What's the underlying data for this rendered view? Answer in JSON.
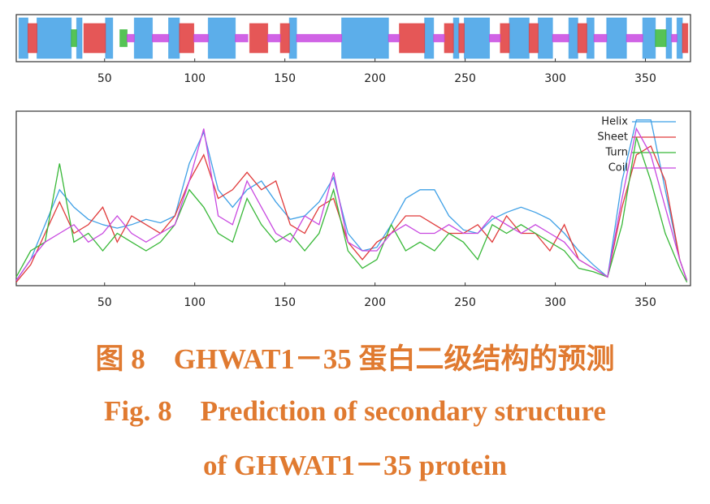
{
  "chart_data": [
    {
      "type": "track",
      "xlim": [
        1,
        375
      ],
      "xticks": [
        50,
        100,
        150,
        200,
        250,
        300,
        350
      ],
      "series": [
        {
          "color": "#3fa0e6",
          "segments": [
            [
              3,
              7
            ],
            [
              13,
              31
            ],
            [
              35,
              37
            ],
            [
              51,
              54
            ],
            [
              67,
              76
            ],
            [
              86,
              91
            ],
            [
              108,
              122
            ],
            [
              153,
              156
            ],
            [
              182,
              207
            ],
            [
              228,
              232
            ],
            [
              244,
              246
            ],
            [
              250,
              263
            ],
            [
              275,
              285
            ],
            [
              291,
              298
            ],
            [
              308,
              312
            ],
            [
              318,
              321
            ],
            [
              329,
              339
            ],
            [
              349,
              355
            ],
            [
              362,
              364
            ],
            [
              368,
              370
            ]
          ]
        },
        {
          "color": "#e03a3a",
          "segments": [
            [
              8,
              12
            ],
            [
              39,
              50
            ],
            [
              92,
              99
            ],
            [
              131,
              140
            ],
            [
              148,
              152
            ],
            [
              214,
              227
            ],
            [
              239,
              243
            ],
            [
              247,
              249
            ],
            [
              270,
              274
            ],
            [
              286,
              290
            ],
            [
              313,
              317
            ],
            [
              371,
              373
            ]
          ]
        },
        {
          "color": "#38b838",
          "segments": [
            [
              32,
              34
            ],
            [
              59,
              62
            ],
            [
              356,
              361
            ]
          ]
        },
        {
          "color": "#c848e0",
          "segments": [
            [
              63,
              66
            ],
            [
              77,
              85
            ],
            [
              100,
              107
            ],
            [
              123,
              129
            ],
            [
              141,
              147
            ],
            [
              157,
              181
            ],
            [
              208,
              213
            ],
            [
              233,
              238
            ],
            [
              264,
              269
            ],
            [
              299,
              307
            ],
            [
              322,
              328
            ],
            [
              340,
              348
            ],
            [
              365,
              367
            ]
          ]
        }
      ]
    },
    {
      "type": "line",
      "xlim": [
        1,
        375
      ],
      "ylim": [
        0,
        1
      ],
      "xticks": [
        50,
        100,
        150,
        200,
        250,
        300,
        350
      ],
      "x": [
        1,
        9,
        17,
        25,
        33,
        41,
        49,
        57,
        65,
        73,
        81,
        89,
        97,
        105,
        113,
        121,
        129,
        137,
        145,
        153,
        161,
        169,
        177,
        185,
        193,
        201,
        209,
        217,
        225,
        233,
        241,
        249,
        257,
        265,
        273,
        281,
        289,
        297,
        305,
        313,
        321,
        329,
        337,
        345,
        353,
        361,
        369,
        373
      ],
      "series": [
        {
          "name": "Helix",
          "color": "#3fa0e6",
          "values": [
            0.03,
            0.15,
            0.35,
            0.55,
            0.45,
            0.38,
            0.35,
            0.33,
            0.35,
            0.38,
            0.36,
            0.4,
            0.7,
            0.88,
            0.55,
            0.45,
            0.55,
            0.6,
            0.48,
            0.38,
            0.4,
            0.48,
            0.62,
            0.3,
            0.2,
            0.22,
            0.35,
            0.5,
            0.55,
            0.55,
            0.4,
            0.32,
            0.3,
            0.38,
            0.42,
            0.45,
            0.42,
            0.38,
            0.3,
            0.2,
            0.12,
            0.05,
            0.6,
            0.95,
            0.95,
            0.55,
            0.15,
            0.03
          ]
        },
        {
          "name": "Sheet",
          "color": "#e03a3a",
          "values": [
            0.02,
            0.12,
            0.3,
            0.48,
            0.3,
            0.35,
            0.45,
            0.25,
            0.4,
            0.35,
            0.3,
            0.4,
            0.6,
            0.75,
            0.5,
            0.55,
            0.65,
            0.55,
            0.6,
            0.35,
            0.3,
            0.45,
            0.5,
            0.25,
            0.15,
            0.25,
            0.3,
            0.4,
            0.4,
            0.35,
            0.3,
            0.3,
            0.35,
            0.25,
            0.4,
            0.3,
            0.3,
            0.2,
            0.35,
            0.15,
            0.1,
            0.05,
            0.45,
            0.75,
            0.8,
            0.6,
            0.15,
            0.03
          ]
        },
        {
          "name": "Turn",
          "color": "#38b838",
          "values": [
            0.05,
            0.2,
            0.25,
            0.7,
            0.25,
            0.3,
            0.2,
            0.3,
            0.25,
            0.2,
            0.25,
            0.35,
            0.55,
            0.45,
            0.3,
            0.25,
            0.5,
            0.35,
            0.25,
            0.3,
            0.2,
            0.3,
            0.55,
            0.2,
            0.1,
            0.15,
            0.35,
            0.2,
            0.25,
            0.2,
            0.3,
            0.25,
            0.15,
            0.35,
            0.3,
            0.35,
            0.3,
            0.25,
            0.2,
            0.1,
            0.08,
            0.05,
            0.35,
            0.85,
            0.6,
            0.3,
            0.1,
            0.02
          ]
        },
        {
          "name": "Coil",
          "color": "#c848e0",
          "values": [
            0.03,
            0.15,
            0.25,
            0.3,
            0.35,
            0.25,
            0.3,
            0.4,
            0.3,
            0.25,
            0.3,
            0.35,
            0.6,
            0.9,
            0.4,
            0.35,
            0.6,
            0.45,
            0.3,
            0.25,
            0.4,
            0.35,
            0.65,
            0.25,
            0.2,
            0.2,
            0.3,
            0.35,
            0.3,
            0.3,
            0.35,
            0.3,
            0.3,
            0.4,
            0.35,
            0.3,
            0.35,
            0.3,
            0.25,
            0.15,
            0.1,
            0.05,
            0.5,
            0.9,
            0.75,
            0.45,
            0.15,
            0.03
          ]
        }
      ]
    }
  ],
  "caption": {
    "line1": "图 8　GHWAT1－35 蛋白二级结构的预测",
    "line2": "Fig. 8　Prediction of secondary structure",
    "line3": "of GHWAT1－35 protein"
  }
}
